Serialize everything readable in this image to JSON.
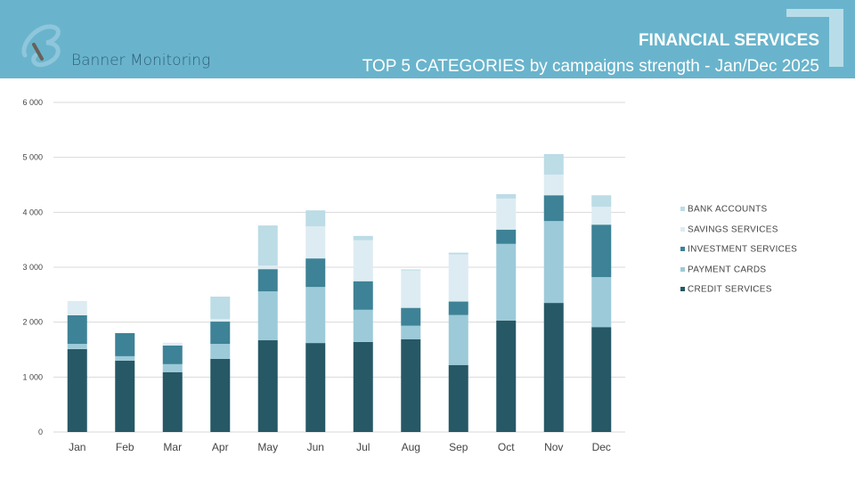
{
  "header": {
    "brand": "Banner Monitoring",
    "title": "FINANCIAL SERVICES",
    "subtitle": "TOP 5 CATEGORIES by campaigns strength - Jan/Dec 2025",
    "band_color": "#69b4cc"
  },
  "chart_data": {
    "type": "bar",
    "stacked": true,
    "categories": [
      "Jan",
      "Feb",
      "Mar",
      "Apr",
      "May",
      "Jun",
      "Jul",
      "Aug",
      "Sep",
      "Oct",
      "Nov",
      "Dec"
    ],
    "ylim": [
      0,
      6000
    ],
    "yticks": [
      "0",
      "1 000",
      "2 000",
      "3 000",
      "4 000",
      "5 000",
      "6 000"
    ],
    "grid": true,
    "legend_position": "right",
    "series": [
      {
        "name": "CREDIT SERVICES",
        "color": "#265866",
        "values": [
          1510,
          1300,
          1090,
          1330,
          1670,
          1620,
          1640,
          1690,
          1220,
          2030,
          2350,
          1910
        ]
      },
      {
        "name": "PAYMENT CARDS",
        "color": "#9ccad8",
        "values": [
          95,
          80,
          145,
          275,
          890,
          1020,
          585,
          245,
          910,
          1395,
          1490,
          910
        ]
      },
      {
        "name": "INVESTMENT SERVICES",
        "color": "#3d8296",
        "values": [
          520,
          420,
          340,
          405,
          405,
          520,
          520,
          325,
          245,
          260,
          470,
          955
        ]
      },
      {
        "name": "SAVINGS SERVICES",
        "color": "#ddecf2",
        "values": [
          260,
          0,
          50,
          50,
          65,
          585,
          745,
          680,
          860,
          565,
          375,
          325
        ]
      },
      {
        "name": "BANK ACCOUNTS",
        "color": "#bcdce6",
        "values": [
          0,
          0,
          0,
          405,
          730,
          290,
          80,
          20,
          30,
          80,
          375,
          210
        ]
      }
    ]
  }
}
